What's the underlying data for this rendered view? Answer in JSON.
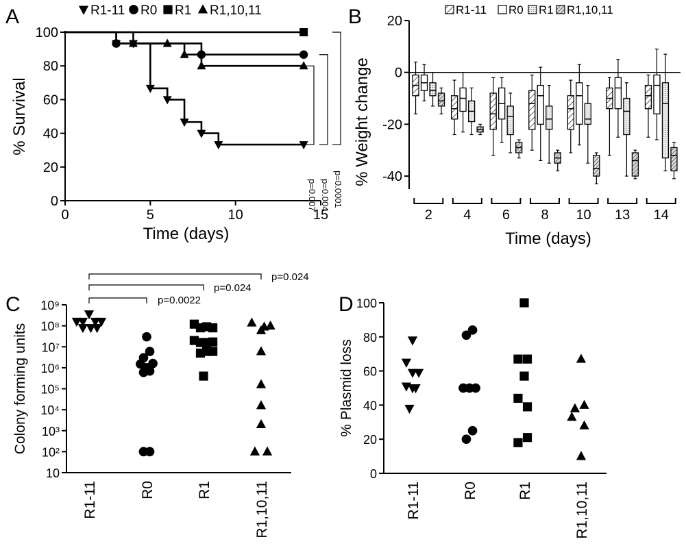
{
  "chart_data": [
    {
      "panel": "A",
      "type": "line",
      "ylabel": "% Survival",
      "xlabel": "Time (days)",
      "xlim": [
        0,
        15
      ],
      "ylim": [
        0,
        100
      ],
      "xticks": [
        "0",
        "5",
        "10",
        "15"
      ],
      "yticks": [
        "0",
        "20",
        "40",
        "60",
        "80",
        "100"
      ],
      "legend": [
        "R1-11",
        "R0",
        "R1",
        "R1,10,11"
      ],
      "series": [
        {
          "name": "R1-11",
          "marker": "triangle-down",
          "x": [
            0,
            3,
            4,
            5,
            6,
            7,
            8,
            9,
            14
          ],
          "y": [
            100,
            93.3,
            93.3,
            66.7,
            60,
            46.7,
            40,
            33.3,
            33.3
          ]
        },
        {
          "name": "R0",
          "marker": "circle",
          "x": [
            0,
            3,
            8,
            14
          ],
          "y": [
            100,
            93.3,
            86.7,
            86.7
          ]
        },
        {
          "name": "R1",
          "marker": "square",
          "x": [
            0,
            14
          ],
          "y": [
            100,
            100
          ]
        },
        {
          "name": "R1,10,11",
          "marker": "triangle-up",
          "x": [
            0,
            4,
            6,
            7,
            8,
            14
          ],
          "y": [
            100,
            93.3,
            93.3,
            86.7,
            80,
            80
          ]
        }
      ],
      "pvalues": [
        "p=0.007",
        "p=0.004",
        "p=0.0001"
      ]
    },
    {
      "panel": "B",
      "type": "box",
      "ylabel": "% Weight change",
      "xlabel": "Time (days)",
      "ylim": [
        -45,
        20
      ],
      "yticks": [
        "-40",
        "-20",
        "0",
        "20"
      ],
      "categories": [
        "2",
        "4",
        "6",
        "8",
        "10",
        "13",
        "14"
      ],
      "legend": [
        "R1-11",
        "R0",
        "R1",
        "R1,10,11"
      ],
      "series": [
        {
          "name": "R1-11",
          "pattern": "hatch",
          "boxes": [
            [
              -16,
              -9,
              -5,
              -1,
              4
            ],
            [
              -24,
              -18,
              -14,
              -9,
              -3
            ],
            [
              -32,
              -22,
              -16,
              -8,
              -2
            ],
            [
              -30,
              -22,
              -12,
              -7,
              -1
            ],
            [
              -31,
              -22,
              -14,
              -9,
              -3
            ],
            [
              -32,
              -14,
              -10,
              -6,
              -2
            ],
            [
              -25,
              -14,
              -9,
              -5,
              -1
            ]
          ]
        },
        {
          "name": "R0",
          "pattern": "empty",
          "boxes": [
            [
              -11,
              -7,
              -4,
              -1,
              3
            ],
            [
              -23,
              -15,
              -10,
              -6,
              0
            ],
            [
              -27,
              -18,
              -12,
              -6,
              -2
            ],
            [
              -34,
              -20,
              -9,
              -5,
              2
            ],
            [
              -28,
              -20,
              -9,
              -4,
              3
            ],
            [
              -25,
              -14,
              -6,
              -2,
              5
            ],
            [
              -26,
              -16,
              -5,
              -1,
              9
            ]
          ]
        },
        {
          "name": "R1",
          "pattern": "dots",
          "boxes": [
            [
              -13,
              -9,
              -7,
              -4,
              0
            ],
            [
              -24,
              -19,
              -15,
              -11,
              -6
            ],
            [
              -31,
              -24,
              -17,
              -13,
              -8
            ],
            [
              -35,
              -22,
              -18,
              -13,
              -5
            ],
            [
              -35,
              -20,
              -18,
              -12,
              -5
            ],
            [
              -40,
              -24,
              -15,
              -10,
              -4
            ],
            [
              -38,
              -33,
              -12,
              -4,
              7
            ]
          ]
        },
        {
          "name": "R1,10,11",
          "pattern": "dense-hatch",
          "boxes": [
            [
              -16,
              -13,
              -11,
              -8,
              -6
            ],
            [
              -24,
              -23,
              -22,
              -21,
              -20
            ],
            [
              -33,
              -31,
              -29,
              -27,
              -26
            ],
            [
              -38,
              -35,
              -33,
              -31,
              -30
            ],
            [
              -43,
              -40,
              -37,
              -32,
              -31
            ],
            [
              -41,
              -40,
              -34,
              -31,
              -30
            ],
            [
              -41,
              -38,
              -32,
              -29,
              -27
            ]
          ]
        }
      ]
    },
    {
      "panel": "C",
      "type": "scatter",
      "ylabel": "Colony forming units",
      "yscale": "log",
      "ylim": [
        10,
        1000000000
      ],
      "yticks": [
        "10",
        "10²",
        "10³",
        "10⁴",
        "10⁵",
        "10⁶",
        "10⁷",
        "10⁸",
        "10⁹"
      ],
      "categories": [
        "R1-11",
        "R0",
        "R1",
        "R1,10,11"
      ],
      "series": [
        {
          "name": "R1-11",
          "marker": "triangle-down",
          "points": [
            [
              -0.36,
              160000000.0
            ],
            [
              -0.18,
              160000000.0
            ],
            [
              0.0,
              360000000.0
            ],
            [
              0.18,
              160000000.0
            ],
            [
              0.36,
              160000000.0
            ],
            [
              -0.18,
              80000000.0
            ],
            [
              0.05,
              80000000.0
            ],
            [
              0.23,
              80000000.0
            ]
          ]
        },
        {
          "name": "R0",
          "marker": "circle",
          "points": [
            [
              0.0,
              30000000.0
            ],
            [
              0.09,
              6000000.0
            ],
            [
              -0.09,
              3000000.0
            ],
            [
              0.18,
              1600000.0
            ],
            [
              -0.18,
              1500000.0
            ],
            [
              0.0,
              1000000.0
            ],
            [
              -0.09,
              600000.0
            ],
            [
              0.09,
              700000.0
            ],
            [
              -0.09,
              100
            ],
            [
              0.09,
              100
            ]
          ]
        },
        {
          "name": "R1",
          "marker": "square",
          "points": [
            [
              -0.27,
              120000000.0
            ],
            [
              -0.09,
              80000000.0
            ],
            [
              0.09,
              90000000.0
            ],
            [
              0.27,
              80000000.0
            ],
            [
              -0.27,
              20000000.0
            ],
            [
              -0.09,
              16000000.0
            ],
            [
              0.09,
              16000000.0
            ],
            [
              0.27,
              17000000.0
            ],
            [
              -0.09,
              5000000.0
            ],
            [
              0.09,
              6000000.0
            ],
            [
              0.27,
              6000000.0
            ],
            [
              0.0,
              400000.0
            ]
          ]
        },
        {
          "name": "R1,10,11",
          "marker": "triangle-up",
          "points": [
            [
              -0.27,
              140000000.0
            ],
            [
              0.09,
              90000000.0
            ],
            [
              0.27,
              100000000.0
            ],
            [
              0.0,
              60000000.0
            ],
            [
              0.0,
              6000000.0
            ],
            [
              0.0,
              160000.0
            ],
            [
              0.0,
              16000.0
            ],
            [
              0.0,
              2000.0
            ],
            [
              -0.18,
              100
            ],
            [
              0.18,
              100
            ]
          ]
        }
      ],
      "pvalues": [
        "p=0.0022",
        "p=0.024",
        "p=0.024"
      ]
    },
    {
      "panel": "D",
      "type": "scatter",
      "ylabel": "% Plasmid loss",
      "ylim": [
        0,
        100
      ],
      "yticks": [
        "0",
        "20",
        "40",
        "60",
        "80",
        "100"
      ],
      "categories": [
        "R1-11",
        "R0",
        "R1",
        "R1,10,11"
      ],
      "series": [
        {
          "name": "R1-11",
          "marker": "triangle-down",
          "points": [
            [
              0.0,
              78
            ],
            [
              -0.18,
              65
            ],
            [
              0.0,
              59
            ],
            [
              0.18,
              59
            ],
            [
              -0.18,
              51
            ],
            [
              0.0,
              50
            ],
            [
              0.09,
              50
            ],
            [
              -0.09,
              38
            ]
          ]
        },
        {
          "name": "R0",
          "marker": "circle",
          "points": [
            [
              -0.09,
              81
            ],
            [
              0.09,
              84
            ],
            [
              -0.18,
              50
            ],
            [
              0.0,
              50
            ],
            [
              0.18,
              50
            ],
            [
              0.09,
              25
            ],
            [
              -0.09,
              20
            ]
          ]
        },
        {
          "name": "R1",
          "marker": "square",
          "points": [
            [
              0.0,
              100
            ],
            [
              -0.18,
              67
            ],
            [
              0.09,
              67
            ],
            [
              0.0,
              57
            ],
            [
              -0.18,
              44
            ],
            [
              0.09,
              39
            ],
            [
              0.09,
              21
            ],
            [
              -0.18,
              18
            ]
          ]
        },
        {
          "name": "R1,10,11",
          "marker": "triangle-up",
          "points": [
            [
              0.0,
              67
            ],
            [
              -0.18,
              38
            ],
            [
              0.09,
              40
            ],
            [
              -0.27,
              33
            ],
            [
              0.09,
              28
            ],
            [
              0.0,
              10
            ]
          ]
        }
      ]
    }
  ]
}
